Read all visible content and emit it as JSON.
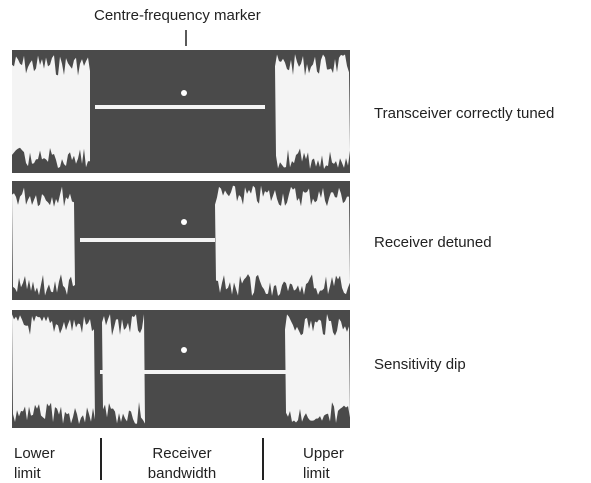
{
  "header": {
    "title": "Centre-frequency marker"
  },
  "traces": [
    {
      "label": "Transceiver correctly tuned"
    },
    {
      "label": "Receiver detuned"
    },
    {
      "label": "Sensitivity dip"
    }
  ],
  "footer": {
    "lower": "Lower limit",
    "bandwidth": "Receiver bandwidth",
    "upper": "Upper limit"
  }
}
